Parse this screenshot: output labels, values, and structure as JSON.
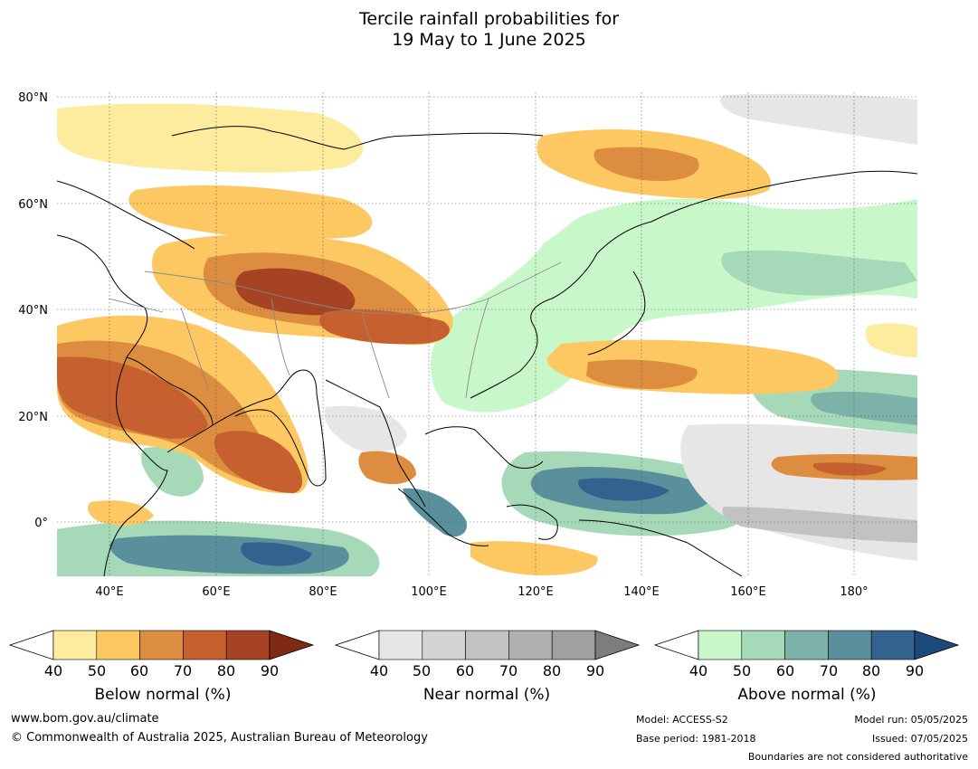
{
  "title": {
    "line1": "Tercile rainfall probabilities for",
    "line2": "19 May to 1 June 2025"
  },
  "map": {
    "lat_labels": [
      "80°N",
      "60°N",
      "40°N",
      "20°N",
      "0°"
    ],
    "lon_labels": [
      "40°E",
      "60°E",
      "80°E",
      "100°E",
      "120°E",
      "140°E",
      "160°E",
      "180°"
    ],
    "extent": {
      "lon": [
        30,
        192
      ],
      "lat": [
        -10,
        81
      ]
    }
  },
  "colorbars": [
    {
      "title": "Below normal (%)",
      "ticks": [
        "40",
        "50",
        "60",
        "70",
        "80",
        "90"
      ],
      "colors": [
        "#fdeb9e",
        "#fdc861",
        "#dd8d40",
        "#c6602f",
        "#a64322",
        "#7f2a12"
      ]
    },
    {
      "title": "Near normal (%)",
      "ticks": [
        "40",
        "50",
        "60",
        "70",
        "80",
        "90"
      ],
      "colors": [
        "#e6e6e6",
        "#d4d4d4",
        "#c2c2c2",
        "#b0b0b0",
        "#a0a0a0",
        "#7d7d7d"
      ]
    },
    {
      "title": "Above normal (%)",
      "ticks": [
        "40",
        "50",
        "60",
        "70",
        "80",
        "90"
      ],
      "colors": [
        "#c8f7c9",
        "#a6d9b8",
        "#7db2a9",
        "#5a8f9c",
        "#33628f",
        "#1d4a7d"
      ]
    }
  ],
  "footer": {
    "website": "www.bom.gov.au/climate",
    "copyright": "© Commonwealth of Australia 2025, Australian Bureau of Meteorology",
    "model": "Model: ACCESS-S2",
    "base_period": "Base period: 1981-2018",
    "model_run": "Model run: 05/05/2025",
    "issued": "Issued: 07/05/2025",
    "disclaimer": "Boundaries are not considered authoritative"
  }
}
